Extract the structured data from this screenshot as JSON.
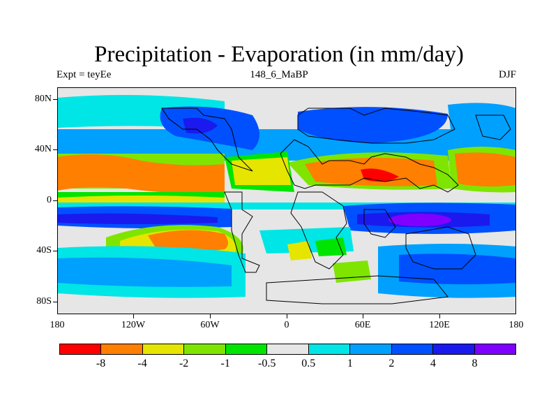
{
  "title": "Precipitation - Evaporation (in mm/day)",
  "subtitle_left": "Expt = teyEe",
  "subtitle_center": "148_6_MaBP",
  "subtitle_right": "DJF",
  "y_axis_labels": [
    "80N",
    "40N",
    "0",
    "40S",
    "80S"
  ],
  "x_axis_labels": [
    "180",
    "120W",
    "60W",
    "0",
    "60E",
    "120E",
    "180"
  ],
  "colorbar": {
    "colors": [
      "#ff0000",
      "#ff7f00",
      "#e5e500",
      "#7fe500",
      "#00e500",
      "#e6e6e6",
      "#00e5e5",
      "#00a0ff",
      "#0050ff",
      "#1a1aee",
      "#8000ff"
    ],
    "labels": [
      "-8",
      "-4",
      "-2",
      "-1",
      "-0.5",
      "0.5",
      "1",
      "2",
      "4",
      "8"
    ]
  },
  "colors": {
    "background": "#ffffff",
    "neutral": "#e6e6e6",
    "coastline": "#000000"
  }
}
